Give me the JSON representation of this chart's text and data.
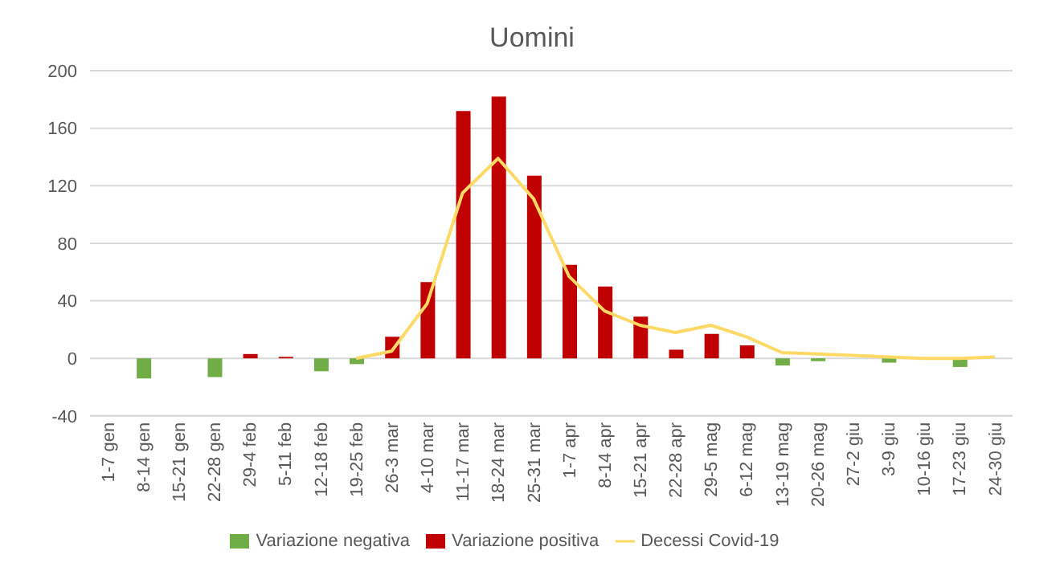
{
  "chart_data": {
    "type": "bar",
    "title": "Uomini",
    "categories": [
      "1-7 gen",
      "8-14 gen",
      "15-21 gen",
      "22-28 gen",
      "29-4 feb",
      "5-11 feb",
      "12-18 feb",
      "19-25 feb",
      "26-3 mar",
      "4-10 mar",
      "11-17 mar",
      "18-24 mar",
      "25-31 mar",
      "1-7 apr",
      "8-14 apr",
      "15-21 apr",
      "22-28 apr",
      "29-5 mag",
      "6-12 mag",
      "13-19 mag",
      "20-26 mag",
      "27-2 giu",
      "3-9 giu",
      "10-16 giu",
      "17-23 giu",
      "24-30 giu"
    ],
    "series": [
      {
        "name": "Variazione negativa",
        "color": "#70ad47",
        "values": [
          null,
          -14,
          null,
          -13,
          null,
          null,
          -9,
          -4,
          null,
          null,
          null,
          null,
          null,
          null,
          null,
          null,
          null,
          null,
          null,
          -5,
          -2,
          null,
          -3,
          null,
          -6,
          null
        ]
      },
      {
        "name": "Variazione positiva",
        "color": "#c00000",
        "values": [
          null,
          null,
          null,
          null,
          3,
          1,
          null,
          null,
          15,
          53,
          172,
          182,
          127,
          65,
          50,
          29,
          6,
          17,
          9,
          null,
          null,
          null,
          null,
          null,
          null,
          null
        ]
      },
      {
        "name": "Decessi Covid-19",
        "color": "#ffd966",
        "type": "line",
        "values": [
          null,
          null,
          null,
          null,
          null,
          null,
          null,
          0,
          5,
          38,
          115,
          139,
          111,
          57,
          33,
          23,
          18,
          23,
          15,
          4,
          3,
          2,
          1,
          0,
          0,
          1
        ]
      }
    ],
    "stacked": true,
    "ylim": [
      -40,
      200
    ],
    "yticks": [
      -40,
      0,
      40,
      80,
      120,
      160,
      200
    ],
    "grid": "y",
    "legend": "bottom",
    "marker": "none"
  }
}
